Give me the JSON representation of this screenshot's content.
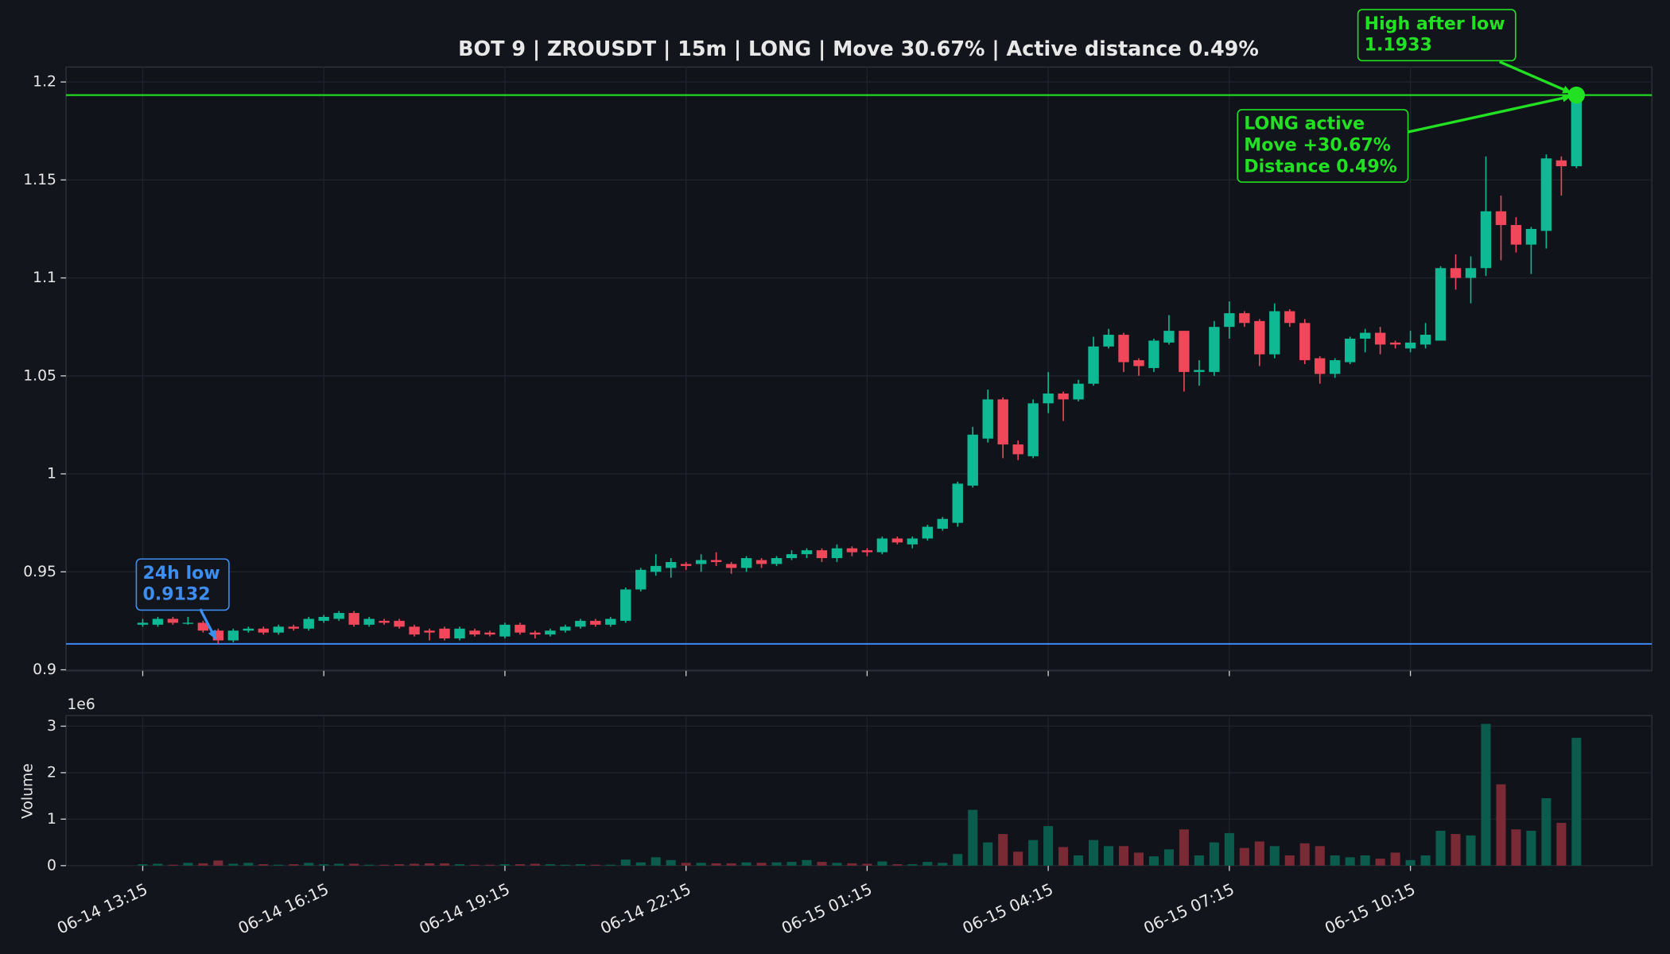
{
  "chart_data": {
    "type": "candlestick",
    "title": "BOT 9 | ZROUSDT | 15m | LONG | Move 30.67% | Active distance 0.49%",
    "x": [
      "06-14 13:15",
      "06-14 13:30",
      "06-14 13:45",
      "06-14 14:00",
      "06-14 14:15",
      "06-14 14:30",
      "06-14 14:45",
      "06-14 15:00",
      "06-14 15:15",
      "06-14 15:30",
      "06-14 15:45",
      "06-14 16:00",
      "06-14 16:15",
      "06-14 16:30",
      "06-14 16:45",
      "06-14 17:00",
      "06-14 17:15",
      "06-14 17:30",
      "06-14 17:45",
      "06-14 18:00",
      "06-14 18:15",
      "06-14 18:30",
      "06-14 18:45",
      "06-14 19:00",
      "06-14 19:15",
      "06-14 19:30",
      "06-14 19:45",
      "06-14 20:00",
      "06-14 20:15",
      "06-14 20:30",
      "06-14 20:45",
      "06-14 21:00",
      "06-14 21:15",
      "06-14 21:30",
      "06-14 21:45",
      "06-14 22:00",
      "06-14 22:15",
      "06-14 22:30",
      "06-14 22:45",
      "06-14 23:00",
      "06-14 23:15",
      "06-14 23:30",
      "06-14 23:45",
      "06-15 00:00",
      "06-15 00:15",
      "06-15 00:30",
      "06-15 00:45",
      "06-15 01:00",
      "06-15 01:15",
      "06-15 01:30",
      "06-15 01:45",
      "06-15 02:00",
      "06-15 02:15",
      "06-15 02:30",
      "06-15 02:45",
      "06-15 03:00",
      "06-15 03:15",
      "06-15 03:30",
      "06-15 03:45",
      "06-15 04:00",
      "06-15 04:15",
      "06-15 04:30",
      "06-15 04:45",
      "06-15 05:00",
      "06-15 05:15",
      "06-15 05:30",
      "06-15 05:45",
      "06-15 06:00",
      "06-15 06:15",
      "06-15 06:30",
      "06-15 06:45",
      "06-15 07:00",
      "06-15 07:15",
      "06-15 07:30",
      "06-15 07:45",
      "06-15 08:00",
      "06-15 08:15",
      "06-15 08:30",
      "06-15 08:45",
      "06-15 09:00",
      "06-15 09:15",
      "06-15 09:30",
      "06-15 09:45",
      "06-15 10:00",
      "06-15 10:15",
      "06-15 10:30",
      "06-15 10:45",
      "06-15 11:00",
      "06-15 11:15",
      "06-15 11:30",
      "06-15 11:45",
      "06-15 12:00",
      "06-15 12:15",
      "06-15 12:30",
      "06-15 12:45",
      "06-15 13:00"
    ],
    "open": [
      0.923,
      0.923,
      0.926,
      0.924,
      0.924,
      0.92,
      0.915,
      0.92,
      0.921,
      0.919,
      0.922,
      0.921,
      0.925,
      0.926,
      0.929,
      0.923,
      0.925,
      0.925,
      0.922,
      0.92,
      0.921,
      0.916,
      0.92,
      0.919,
      0.917,
      0.923,
      0.919,
      0.918,
      0.92,
      0.922,
      0.925,
      0.923,
      0.925,
      0.941,
      0.95,
      0.952,
      0.954,
      0.954,
      0.956,
      0.954,
      0.952,
      0.956,
      0.954,
      0.957,
      0.959,
      0.961,
      0.957,
      0.962,
      0.961,
      0.96,
      0.967,
      0.964,
      0.967,
      0.972,
      0.975,
      0.994,
      1.018,
      1.038,
      1.015,
      1.009,
      1.036,
      1.041,
      1.038,
      1.046,
      1.065,
      1.071,
      1.058,
      1.054,
      1.067,
      1.073,
      1.052,
      1.052,
      1.075,
      1.082,
      1.078,
      1.061,
      1.083,
      1.077,
      1.059,
      1.051,
      1.057,
      1.069,
      1.072,
      1.067,
      1.064,
      1.066,
      1.068,
      1.105,
      1.1,
      1.105,
      1.134,
      1.127,
      1.117,
      1.124,
      1.16,
      1.157
    ],
    "high": [
      0.926,
      0.927,
      0.927,
      0.927,
      0.925,
      0.921,
      0.921,
      0.922,
      0.922,
      0.923,
      0.923,
      0.927,
      0.928,
      0.93,
      0.93,
      0.927,
      0.926,
      0.926,
      0.923,
      0.921,
      0.922,
      0.922,
      0.921,
      0.92,
      0.924,
      0.924,
      0.92,
      0.921,
      0.923,
      0.926,
      0.926,
      0.927,
      0.942,
      0.952,
      0.959,
      0.957,
      0.955,
      0.959,
      0.96,
      0.955,
      0.958,
      0.957,
      0.958,
      0.961,
      0.962,
      0.962,
      0.964,
      0.963,
      0.962,
      0.968,
      0.968,
      0.968,
      0.974,
      0.978,
      0.996,
      1.024,
      1.043,
      1.039,
      1.017,
      1.038,
      1.052,
      1.042,
      1.048,
      1.07,
      1.074,
      1.072,
      1.059,
      1.069,
      1.081,
      1.073,
      1.058,
      1.078,
      1.088,
      1.083,
      1.079,
      1.087,
      1.084,
      1.079,
      1.06,
      1.059,
      1.07,
      1.074,
      1.075,
      1.068,
      1.073,
      1.077,
      1.106,
      1.112,
      1.111,
      1.162,
      1.142,
      1.131,
      1.126,
      1.163,
      1.162,
      1.1933
    ],
    "low": [
      0.922,
      0.922,
      0.923,
      0.923,
      0.919,
      0.9132,
      0.914,
      0.919,
      0.918,
      0.918,
      0.92,
      0.92,
      0.924,
      0.925,
      0.922,
      0.922,
      0.923,
      0.921,
      0.917,
      0.915,
      0.915,
      0.915,
      0.917,
      0.917,
      0.916,
      0.918,
      0.916,
      0.917,
      0.919,
      0.921,
      0.922,
      0.922,
      0.924,
      0.94,
      0.948,
      0.947,
      0.951,
      0.95,
      0.953,
      0.949,
      0.95,
      0.952,
      0.953,
      0.956,
      0.957,
      0.955,
      0.955,
      0.958,
      0.958,
      0.959,
      0.964,
      0.962,
      0.966,
      0.971,
      0.973,
      0.993,
      1.016,
      1.008,
      1.007,
      1.008,
      1.031,
      1.027,
      1.037,
      1.045,
      1.064,
      1.052,
      1.05,
      1.052,
      1.066,
      1.042,
      1.045,
      1.05,
      1.069,
      1.075,
      1.055,
      1.059,
      1.075,
      1.056,
      1.046,
      1.049,
      1.056,
      1.062,
      1.061,
      1.064,
      1.062,
      1.064,
      1.068,
      1.094,
      1.087,
      1.101,
      1.109,
      1.113,
      1.102,
      1.115,
      1.142,
      1.156
    ],
    "close": [
      0.924,
      0.926,
      0.924,
      0.924,
      0.92,
      0.915,
      0.92,
      0.921,
      0.919,
      0.922,
      0.921,
      0.926,
      0.927,
      0.929,
      0.923,
      0.926,
      0.924,
      0.922,
      0.918,
      0.919,
      0.916,
      0.921,
      0.918,
      0.918,
      0.923,
      0.919,
      0.918,
      0.92,
      0.922,
      0.925,
      0.923,
      0.926,
      0.941,
      0.951,
      0.953,
      0.955,
      0.953,
      0.956,
      0.955,
      0.952,
      0.957,
      0.954,
      0.957,
      0.959,
      0.961,
      0.957,
      0.962,
      0.96,
      0.96,
      0.967,
      0.965,
      0.967,
      0.973,
      0.977,
      0.995,
      1.02,
      1.038,
      1.015,
      1.01,
      1.036,
      1.041,
      1.038,
      1.046,
      1.065,
      1.071,
      1.057,
      1.055,
      1.068,
      1.073,
      1.052,
      1.053,
      1.075,
      1.082,
      1.077,
      1.061,
      1.083,
      1.077,
      1.058,
      1.051,
      1.058,
      1.069,
      1.072,
      1.066,
      1.066,
      1.067,
      1.071,
      1.105,
      1.1,
      1.105,
      1.134,
      1.127,
      1.117,
      1.125,
      1.161,
      1.157,
      1.1933
    ],
    "xticks": [
      "06-14 13:15",
      "06-14 16:15",
      "06-14 19:15",
      "06-14 22:15",
      "06-15 01:15",
      "06-15 04:15",
      "06-15 07:15",
      "06-15 10:15"
    ],
    "ylim": [
      0.8995,
      1.2076
    ],
    "yticks": [
      0.9,
      0.95,
      1,
      1.05,
      1.1,
      1.15,
      1.2
    ],
    "grid": true,
    "up_color": "#0fb994",
    "down_color": "#f0475a",
    "reference_lines": [
      {
        "value": 0.9132,
        "color": "#3b82e6"
      },
      {
        "value": 1.1933,
        "color": "#22d822"
      }
    ],
    "annotations": [
      {
        "text": [
          "24h low",
          "0.9132"
        ],
        "x": "06-14 14:30",
        "y": 0.9132,
        "color": "#3d8ef0"
      },
      {
        "text": [
          "LONG active",
          "Move +30.67%",
          "Distance 0.49%"
        ],
        "x": "06-15 13:00",
        "y": 1.1933,
        "color": "#22e022"
      },
      {
        "text": [
          "High after low",
          "1.1933"
        ],
        "x": "06-15 13:00",
        "y": 1.1933,
        "color": "#22e022"
      }
    ],
    "marker_color": "#22e022",
    "volume": {
      "label": "Volume",
      "scale_label": "1e6",
      "values": [
        0.03,
        0.04,
        0.02,
        0.06,
        0.05,
        0.11,
        0.04,
        0.06,
        0.03,
        0.02,
        0.03,
        0.06,
        0.03,
        0.04,
        0.04,
        0.02,
        0.02,
        0.03,
        0.04,
        0.05,
        0.05,
        0.03,
        0.02,
        0.02,
        0.03,
        0.03,
        0.04,
        0.03,
        0.02,
        0.03,
        0.02,
        0.02,
        0.13,
        0.07,
        0.18,
        0.12,
        0.06,
        0.06,
        0.05,
        0.05,
        0.07,
        0.06,
        0.07,
        0.08,
        0.12,
        0.08,
        0.06,
        0.05,
        0.04,
        0.09,
        0.03,
        0.03,
        0.08,
        0.06,
        0.25,
        1.2,
        0.5,
        0.68,
        0.3,
        0.55,
        0.85,
        0.4,
        0.22,
        0.55,
        0.42,
        0.42,
        0.28,
        0.2,
        0.35,
        0.78,
        0.22,
        0.5,
        0.7,
        0.38,
        0.52,
        0.42,
        0.22,
        0.48,
        0.42,
        0.22,
        0.18,
        0.22,
        0.15,
        0.28,
        0.12,
        0.22,
        0.75,
        0.68,
        0.65,
        3.05,
        1.75,
        0.78,
        0.75,
        1.45,
        0.92,
        2.75
      ],
      "ylim": [
        0,
        3.23
      ],
      "yticks": [
        0,
        1,
        2,
        3
      ],
      "up_color": "#0b5c4c",
      "down_color": "#7a2a35"
    }
  }
}
